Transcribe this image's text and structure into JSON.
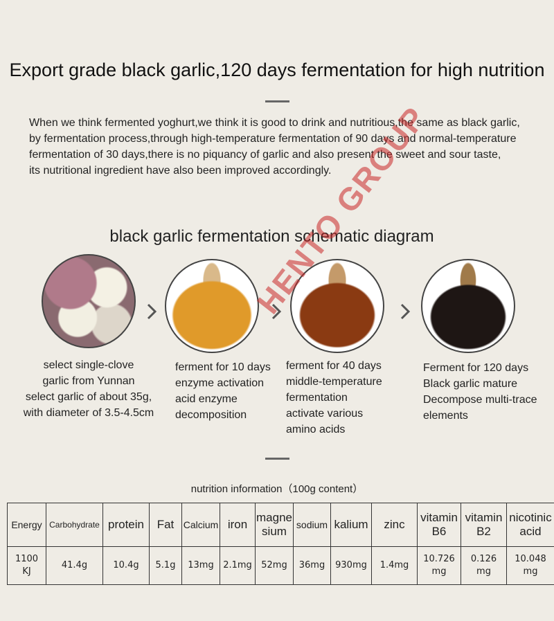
{
  "header": {
    "title": "Export grade black garlic,120 days fermentation for high nutrition",
    "intro": [
      "When we think fermented yoghurt,we think it is good to drink and nutritious,the same as black garlic,",
      "by fermentation process,through high-temperature fermentation of 90 days and normal-temperature",
      "fermentation of 30 days,there is no piquancy of garlic and also present the sweet and sour taste,",
      "its nutritional ingredient have also been improved accordingly."
    ]
  },
  "diagram": {
    "title": "black garlic fermentation schematic diagram",
    "watermark": "HENTO GROUP",
    "steps": [
      {
        "lines": [
          "select single-clove",
          "garlic from Yunnan",
          "select garlic of about 35g,",
          "with diameter of 3.5-4.5cm"
        ]
      },
      {
        "lines": [
          "ferment for 10 days",
          "enzyme activation",
          "acid enzyme",
          "decomposition"
        ]
      },
      {
        "lines": [
          "ferment for 40 days",
          "middle-temperature",
          "fermentation",
          "activate various",
          "amino acids"
        ]
      },
      {
        "lines": [
          "Ferment for 120 days",
          "Black garlic mature",
          "Decompose multi-trace",
          "elements"
        ]
      }
    ]
  },
  "table": {
    "caption": "nutrition information（100g content）",
    "header": [
      "Energy",
      "Carbohydrate",
      "protein",
      "Fat",
      "Calcium",
      "iron",
      "magne\nsium",
      "sodium",
      "kalium",
      "zinc",
      "vitamin\nB6",
      "vitamin\nB2",
      "nicotinic\nacid"
    ],
    "rows": [
      [
        "1100\nKJ",
        "41.4g",
        "10.4g",
        "5.1g",
        "13mg",
        "2.1mg",
        "52mg",
        "36mg",
        "930mg",
        "1.4mg",
        "10.726\nmg",
        "0.126\nmg",
        "10.048\nmg"
      ]
    ]
  }
}
